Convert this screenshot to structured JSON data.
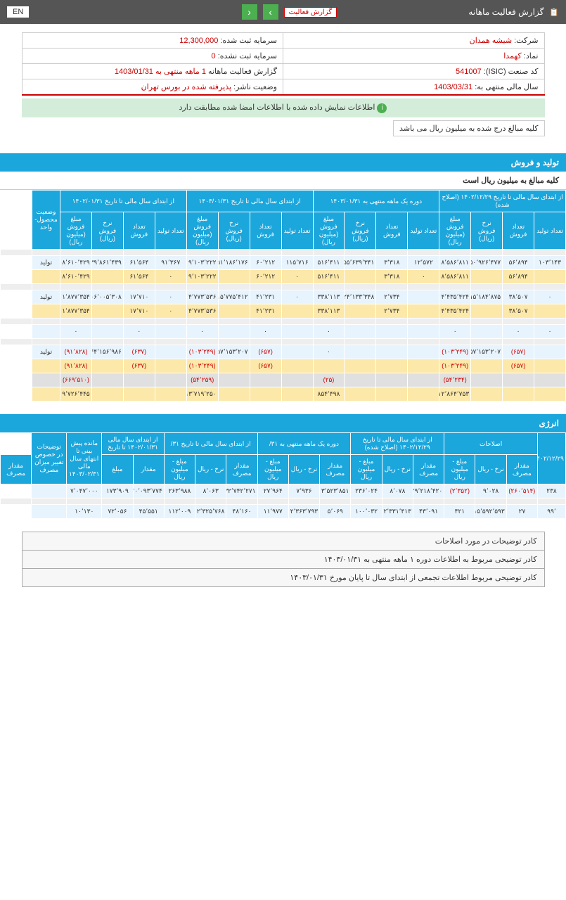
{
  "header": {
    "icon": "📋",
    "title": "گزارش فعالیت ماهانه",
    "badge": "گزارش فعالیت",
    "lang": "EN"
  },
  "info": {
    "company_l": "شرکت:",
    "company_v": "شیشه همدان",
    "capital_l": "سرمایه ثبت شده:",
    "capital_v": "12,300,000",
    "symbol_l": "نماد:",
    "symbol_v": "کهمدا",
    "uncap_l": "سرمایه ثبت نشده:",
    "uncap_v": "0",
    "isic_l": "کد صنعت (ISIC):",
    "isic_v": "541007",
    "report_l": "گزارش فعالیت ماهانه",
    "report_v": "1 ماهه منتهی به 1403/01/31",
    "year_l": "سال مالی منتهی به:",
    "year_v": "1403/03/31",
    "status_l": "وضعیت ناشر:",
    "status_v": "پذیرفته شده در بورس تهران"
  },
  "success": "اطلاعات نمایش داده شده با اطلاعات امضا شده مطابقت دارد",
  "note": "کلیه مبالغ درج شده به میلیون ریال می باشد",
  "section1": {
    "title": "تولید و فروش",
    "sub": "کلیه مبالغ به میلیون ریال است",
    "topHeaders": [
      "از ابتدای سال مالی تا تاریخ ۱۴۰۲/۱۲/۲۹ (اصلاح شده)",
      "دوره یک ماهه منتهی به ۱۴۰۳/۰۱/۳۱",
      "از ابتدای سال مالی تا تاریخ ۱۴۰۳/۰۱/۳۱",
      "از ابتدای سال مالی تا تاریخ ۱۴۰۲/۰۱/۳۱",
      "وضعیت محصول-واحد"
    ],
    "subHeaders": [
      "تعداد تولید",
      "تعداد فروش",
      "نرخ فروش (ریال)",
      "مبلغ فروش (میلیون ریال)"
    ],
    "rows": [
      {
        "cls": "gray",
        "c": [
          "",
          "",
          "",
          "",
          "",
          "",
          "",
          "",
          "",
          "",
          "",
          "",
          "",
          "",
          "",
          "",
          "",
          ""
        ]
      },
      {
        "cls": "light",
        "c": [
          "۱۰۳٬۱۴۳",
          "۵۶٬۸۹۴",
          "۱۵۰٬۹۲۶٬۴۷۷",
          "۸٬۵۸۶٬۸۱۱",
          "۱۲٬۵۷۲",
          "۳٬۳۱۸",
          "۱۵۵٬۶۳۹٬۳۴۱",
          "۵۱۶٬۴۱۱",
          "۱۱۵٬۷۱۶",
          "۶۰٬۲۱۲",
          "۱۵۱٬۱۸۶٬۱۷۶",
          "۹٬۱۰۳٬۲۲۲",
          "۹۱٬۳۶۷",
          "۶۱٬۵۶۴",
          "۱۳۹٬۸۶۱٬۴۳۹",
          "۸٬۶۱۰٬۴۲۹",
          "تولید"
        ]
      },
      {
        "cls": "yellow",
        "c": [
          "",
          "۵۶٬۸۹۴",
          "",
          "۸٬۵۸۶٬۸۱۱",
          "۰",
          "۳٬۳۱۸",
          "",
          "۵۱۶٬۴۱۱",
          "۰",
          "۶۰٬۲۱۲",
          "",
          "۹٬۱۰۳٬۲۲۲",
          "۰",
          "۶۱٬۵۶۴",
          "",
          "۸٬۶۱۰٬۴۲۹",
          ""
        ]
      },
      {
        "cls": "gray",
        "c": [
          "",
          "",
          "",
          "",
          "",
          "",
          "",
          "",
          "",
          "",
          "",
          "",
          "",
          "",
          "",
          "",
          "",
          ""
        ]
      },
      {
        "cls": "light",
        "c": [
          "۰",
          "۳۸٬۵۰۷",
          "۱۱۵٬۱۸۴٬۸۷۵",
          "۴٬۴۳۵٬۴۲۴",
          "",
          "۲٬۷۳۴",
          "۱۲۴٬۱۳۳٬۳۴۸",
          "۳۳۸٬۱۱۳",
          "۰",
          "۴۱٬۲۳۱",
          "۱۱۵٬۷۷۵٬۴۱۲",
          "۴٬۷۷۳٬۵۳۶",
          "۰",
          "۱۷٬۷۱۰",
          "۱۰۶٬۰۰۵٬۳۰۸",
          "۱٬۸۷۷٬۳۵۴",
          "تولید"
        ]
      },
      {
        "cls": "yellow",
        "c": [
          "",
          "۳۸٬۵۰۷",
          "",
          "۴٬۴۳۵٬۴۲۴",
          "",
          "۲٬۷۳۴",
          "",
          "۳۳۸٬۱۱۳",
          "",
          "۴۱٬۲۳۱",
          "",
          "۴٬۷۷۳٬۵۳۶",
          "۰",
          "۱۷٬۷۱۰",
          "",
          "۱٬۸۷۷٬۳۵۴",
          ""
        ]
      },
      {
        "cls": "gray",
        "c": [
          "",
          "",
          "",
          "",
          "",
          "",
          "",
          "",
          "",
          "",
          "",
          "",
          "",
          "",
          "",
          "",
          "",
          ""
        ]
      },
      {
        "cls": "light",
        "c": [
          "۰",
          "۰",
          "",
          "۰",
          "",
          "",
          "",
          "۰",
          "",
          "۰",
          "",
          "۰",
          "",
          "۰",
          "",
          "۰",
          ""
        ]
      },
      {
        "cls": "gray",
        "c": [
          "",
          "",
          "",
          "",
          "",
          "",
          "",
          "",
          "",
          "",
          "",
          "",
          "",
          "",
          "",
          "",
          "",
          ""
        ]
      },
      {
        "cls": "light neg-row",
        "c": [
          "",
          "(۶۵۷)",
          "۱۵۷٬۱۵۳٬۲۰۷",
          "(۱۰۳٬۲۴۹)",
          "",
          "",
          "",
          "۰",
          "",
          "(۶۵۷)",
          "۱۵۷٬۱۵۳٬۲۰۷",
          "(۱۰۳٬۲۴۹)",
          "",
          "(۶۳۷)",
          "۱۴۴٬۱۵۶٬۹۸۶",
          "(۹۱٬۸۲۸)",
          "تولید"
        ]
      },
      {
        "cls": "yellow neg-row",
        "c": [
          "",
          "(۶۵۷)",
          "",
          "(۱۰۳٬۲۴۹)",
          "",
          "",
          "",
          "",
          "",
          "(۶۵۷)",
          "",
          "(۱۰۳٬۲۴۹)",
          "",
          "(۶۳۷)",
          "",
          "(۹۱٬۸۲۸)",
          ""
        ]
      },
      {
        "cls": "gray2 neg-row",
        "c": [
          "",
          "",
          "",
          "(۵۴٬۲۳۴)",
          "",
          "",
          "",
          "(۲۵)",
          "",
          "",
          "",
          "(۵۴٬۲۵۹)",
          "",
          "",
          "",
          "(۶۶۹٬۵۱۰)",
          ""
        ]
      },
      {
        "cls": "yellow",
        "c": [
          "",
          "",
          "",
          "۱۲٬۸۶۴٬۷۵۳",
          "",
          "",
          "",
          "۸۵۴٬۴۹۸",
          "",
          "",
          "",
          "۱۳٬۷۱۹٬۲۵۰",
          "",
          "",
          "",
          "۹٬۷۲۶٬۴۴۵",
          ""
        ]
      }
    ]
  },
  "section2": {
    "title": "انرژی",
    "topHeaders": [
      "۱۴۰۲/۱۲/۲۹",
      "اصلاحات",
      "از ابتدای سال مالی تا تاریخ ۱۴۰۲/۱۲/۲۹ (اصلاح شده)",
      "دوره یک ماهه منتهی به ۳۱/",
      "از ابتدای سال مالی تا تاریخ ۳۱/",
      "از ابتدای سال مالی ۱۴۰۲/۰۱/۳۱ تا تاریخ",
      "مانده پیش بینی تا انتهای سال مالی ۱۴۰۳/۰۲/۳۱",
      "توضیحات در خصوص تغییر میزان مصرف"
    ],
    "subHeaders": [
      "مقدار مصرف",
      "نرخ - ریال",
      "مبلغ - میلیون ریال"
    ],
    "extraHeaders": [
      "مقدار",
      "مبلغ",
      "مقدار مصرف"
    ],
    "rows": [
      {
        "cls": "light",
        "c": [
          "۲۳۸",
          "(۲۶۰٬۵۱۴)",
          "۹٬۰۲۸",
          "(۲٬۳۵۲)",
          "۲۹٬۲۱۸٬۴۲۰",
          "۸٬۰۷۸",
          "۲۳۶٬۰۲۴",
          "۳٬۵۲۳٬۸۵۱",
          "۷٬۹۳۶",
          "۲۷٬۹۶۴",
          "۳۲٬۷۴۲٬۲۷۱",
          "۸٬۰۶۳",
          "۲۶۳٬۹۸۸",
          "۲۰٬۰۹۳٬۷۷۴",
          "۱۷۳٬۹۰۹",
          "۷٬۰۴۷٬۰۰۰",
          ""
        ]
      },
      {
        "cls": "gray",
        "c": [
          "",
          "",
          "",
          "",
          "",
          "",
          "",
          "",
          "",
          "",
          "",
          "",
          "",
          "",
          "",
          "",
          "",
          ""
        ]
      },
      {
        "cls": "light",
        "c": [
          "۹۹٬",
          "۲۷",
          "۱۵٬۵۹۲٬۵۹۳",
          "۴۲۱",
          "۴۳٬۰۹۱",
          "۲٬۳۳۱٬۴۱۳",
          "۱۰۰٬۰۳۲",
          "۵٬۰۶۹",
          "۲٬۳۶۳٬۷۹۳",
          "۱۱٬۹۷۷",
          "۴۸٬۱۶۰",
          "۲٬۳۲۵٬۷۶۸",
          "۱۱۲٬۰۰۹",
          "۴۵٬۵۵۱",
          "۷۲٬۰۵۶",
          "۱۰٬۱۳۰",
          ""
        ]
      }
    ]
  },
  "footer": [
    "کادر توضیحات در مورد اصلاحات",
    "کادر توضیحی مربوط به اطلاعات دوره ۱ ماهه منتهی به ۱۴۰۳/۰۱/۳۱",
    "کادر توضیحی مربوط اطلاعات تجمعی از ابتدای سال تا پایان مورخ ۱۴۰۳/۰۱/۳۱"
  ]
}
